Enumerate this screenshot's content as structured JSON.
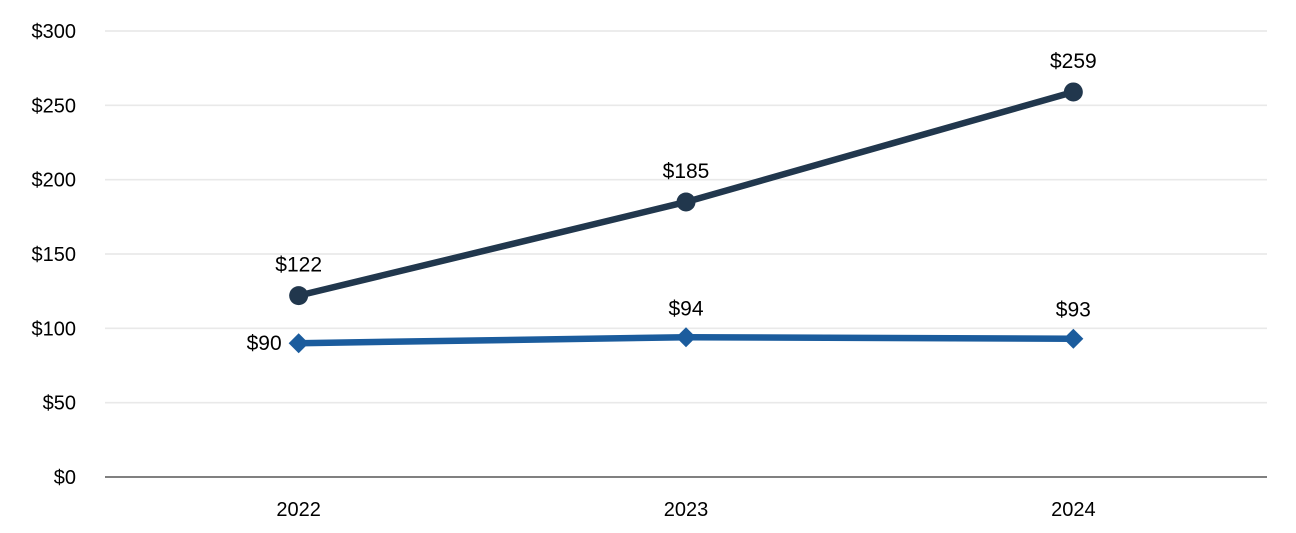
{
  "chart_data": {
    "type": "line",
    "categories": [
      "2022",
      "2023",
      "2024"
    ],
    "series": [
      {
        "id": "circle-series",
        "marker": "circle",
        "color": "#21374D",
        "values": [
          122,
          185,
          259
        ],
        "labels": [
          "$122",
          "$185",
          "$259"
        ],
        "label_positions": [
          "above",
          "above",
          "above"
        ]
      },
      {
        "id": "diamond-series",
        "marker": "diamond",
        "color": "#1B5C9D",
        "values": [
          90,
          94,
          93
        ],
        "labels": [
          "$90",
          "$94",
          "$93"
        ],
        "label_positions": [
          "left",
          "above",
          "above"
        ]
      }
    ],
    "title": "",
    "xlabel": "",
    "ylabel": "",
    "ylim": [
      0,
      300
    ],
    "ytick_step": 50,
    "yticks": [
      0,
      50,
      100,
      150,
      200,
      250,
      300
    ],
    "ytick_labels": [
      "$0",
      "$50",
      "$100",
      "$150",
      "$200",
      "$250",
      "$300"
    ],
    "grid": true,
    "legend": "none",
    "colors": {
      "background": "#FFFFFF",
      "gridline": "#E9E9E9",
      "axis_line": "#808080",
      "text": "#000000"
    }
  }
}
